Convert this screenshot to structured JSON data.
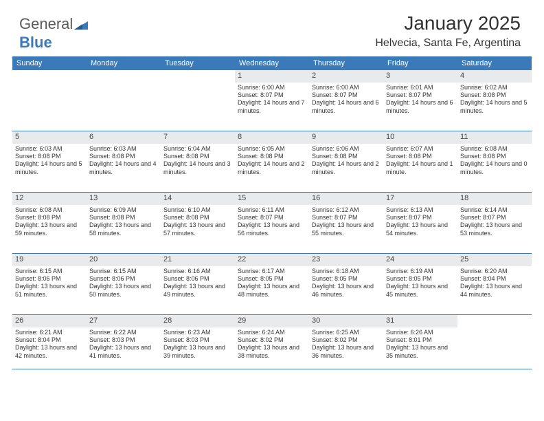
{
  "logo": {
    "part1": "General",
    "part2": "Blue"
  },
  "title": "January 2025",
  "location": "Helvecia, Santa Fe, Argentina",
  "colors": {
    "header_bg": "#3a7ab8",
    "header_text": "#ffffff",
    "daynum_bg": "#e8eaec",
    "border": "#3a7ab8",
    "text": "#333333",
    "logo_gray": "#5a5a5a",
    "logo_blue": "#3a7ab8",
    "page_bg": "#ffffff"
  },
  "weekdays": [
    "Sunday",
    "Monday",
    "Tuesday",
    "Wednesday",
    "Thursday",
    "Friday",
    "Saturday"
  ],
  "weeks": [
    [
      {
        "n": "",
        "sr": "",
        "ss": "",
        "dl": ""
      },
      {
        "n": "",
        "sr": "",
        "ss": "",
        "dl": ""
      },
      {
        "n": "",
        "sr": "",
        "ss": "",
        "dl": ""
      },
      {
        "n": "1",
        "sr": "Sunrise: 6:00 AM",
        "ss": "Sunset: 8:07 PM",
        "dl": "Daylight: 14 hours and 7 minutes."
      },
      {
        "n": "2",
        "sr": "Sunrise: 6:00 AM",
        "ss": "Sunset: 8:07 PM",
        "dl": "Daylight: 14 hours and 6 minutes."
      },
      {
        "n": "3",
        "sr": "Sunrise: 6:01 AM",
        "ss": "Sunset: 8:07 PM",
        "dl": "Daylight: 14 hours and 6 minutes."
      },
      {
        "n": "4",
        "sr": "Sunrise: 6:02 AM",
        "ss": "Sunset: 8:08 PM",
        "dl": "Daylight: 14 hours and 5 minutes."
      }
    ],
    [
      {
        "n": "5",
        "sr": "Sunrise: 6:03 AM",
        "ss": "Sunset: 8:08 PM",
        "dl": "Daylight: 14 hours and 5 minutes."
      },
      {
        "n": "6",
        "sr": "Sunrise: 6:03 AM",
        "ss": "Sunset: 8:08 PM",
        "dl": "Daylight: 14 hours and 4 minutes."
      },
      {
        "n": "7",
        "sr": "Sunrise: 6:04 AM",
        "ss": "Sunset: 8:08 PM",
        "dl": "Daylight: 14 hours and 3 minutes."
      },
      {
        "n": "8",
        "sr": "Sunrise: 6:05 AM",
        "ss": "Sunset: 8:08 PM",
        "dl": "Daylight: 14 hours and 2 minutes."
      },
      {
        "n": "9",
        "sr": "Sunrise: 6:06 AM",
        "ss": "Sunset: 8:08 PM",
        "dl": "Daylight: 14 hours and 2 minutes."
      },
      {
        "n": "10",
        "sr": "Sunrise: 6:07 AM",
        "ss": "Sunset: 8:08 PM",
        "dl": "Daylight: 14 hours and 1 minute."
      },
      {
        "n": "11",
        "sr": "Sunrise: 6:08 AM",
        "ss": "Sunset: 8:08 PM",
        "dl": "Daylight: 14 hours and 0 minutes."
      }
    ],
    [
      {
        "n": "12",
        "sr": "Sunrise: 6:08 AM",
        "ss": "Sunset: 8:08 PM",
        "dl": "Daylight: 13 hours and 59 minutes."
      },
      {
        "n": "13",
        "sr": "Sunrise: 6:09 AM",
        "ss": "Sunset: 8:08 PM",
        "dl": "Daylight: 13 hours and 58 minutes."
      },
      {
        "n": "14",
        "sr": "Sunrise: 6:10 AM",
        "ss": "Sunset: 8:08 PM",
        "dl": "Daylight: 13 hours and 57 minutes."
      },
      {
        "n": "15",
        "sr": "Sunrise: 6:11 AM",
        "ss": "Sunset: 8:07 PM",
        "dl": "Daylight: 13 hours and 56 minutes."
      },
      {
        "n": "16",
        "sr": "Sunrise: 6:12 AM",
        "ss": "Sunset: 8:07 PM",
        "dl": "Daylight: 13 hours and 55 minutes."
      },
      {
        "n": "17",
        "sr": "Sunrise: 6:13 AM",
        "ss": "Sunset: 8:07 PM",
        "dl": "Daylight: 13 hours and 54 minutes."
      },
      {
        "n": "18",
        "sr": "Sunrise: 6:14 AM",
        "ss": "Sunset: 8:07 PM",
        "dl": "Daylight: 13 hours and 53 minutes."
      }
    ],
    [
      {
        "n": "19",
        "sr": "Sunrise: 6:15 AM",
        "ss": "Sunset: 8:06 PM",
        "dl": "Daylight: 13 hours and 51 minutes."
      },
      {
        "n": "20",
        "sr": "Sunrise: 6:15 AM",
        "ss": "Sunset: 8:06 PM",
        "dl": "Daylight: 13 hours and 50 minutes."
      },
      {
        "n": "21",
        "sr": "Sunrise: 6:16 AM",
        "ss": "Sunset: 8:06 PM",
        "dl": "Daylight: 13 hours and 49 minutes."
      },
      {
        "n": "22",
        "sr": "Sunrise: 6:17 AM",
        "ss": "Sunset: 8:05 PM",
        "dl": "Daylight: 13 hours and 48 minutes."
      },
      {
        "n": "23",
        "sr": "Sunrise: 6:18 AM",
        "ss": "Sunset: 8:05 PM",
        "dl": "Daylight: 13 hours and 46 minutes."
      },
      {
        "n": "24",
        "sr": "Sunrise: 6:19 AM",
        "ss": "Sunset: 8:05 PM",
        "dl": "Daylight: 13 hours and 45 minutes."
      },
      {
        "n": "25",
        "sr": "Sunrise: 6:20 AM",
        "ss": "Sunset: 8:04 PM",
        "dl": "Daylight: 13 hours and 44 minutes."
      }
    ],
    [
      {
        "n": "26",
        "sr": "Sunrise: 6:21 AM",
        "ss": "Sunset: 8:04 PM",
        "dl": "Daylight: 13 hours and 42 minutes."
      },
      {
        "n": "27",
        "sr": "Sunrise: 6:22 AM",
        "ss": "Sunset: 8:03 PM",
        "dl": "Daylight: 13 hours and 41 minutes."
      },
      {
        "n": "28",
        "sr": "Sunrise: 6:23 AM",
        "ss": "Sunset: 8:03 PM",
        "dl": "Daylight: 13 hours and 39 minutes."
      },
      {
        "n": "29",
        "sr": "Sunrise: 6:24 AM",
        "ss": "Sunset: 8:02 PM",
        "dl": "Daylight: 13 hours and 38 minutes."
      },
      {
        "n": "30",
        "sr": "Sunrise: 6:25 AM",
        "ss": "Sunset: 8:02 PM",
        "dl": "Daylight: 13 hours and 36 minutes."
      },
      {
        "n": "31",
        "sr": "Sunrise: 6:26 AM",
        "ss": "Sunset: 8:01 PM",
        "dl": "Daylight: 13 hours and 35 minutes."
      },
      {
        "n": "",
        "sr": "",
        "ss": "",
        "dl": ""
      }
    ]
  ]
}
